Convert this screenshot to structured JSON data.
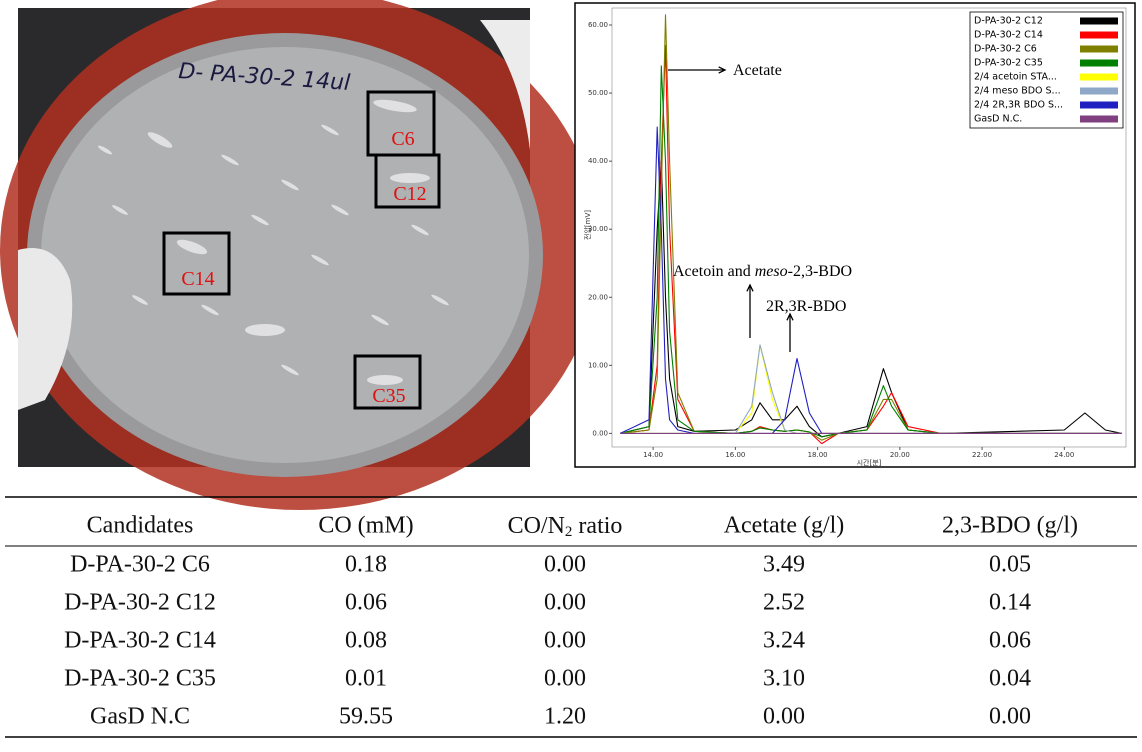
{
  "photo": {
    "plate_label": "D- PA-30-2 14ul",
    "boxes": [
      "C6",
      "C12",
      "C14",
      "C35"
    ]
  },
  "chart_data": {
    "type": "line",
    "x_label": "시간[분]",
    "y_label": "전압[mV]",
    "annotations": {
      "acetate": "Acetate",
      "acetoin_pre": "Acetoin and ",
      "acetoin_italic": "meso",
      "acetoin_post": "-2,3-BDO",
      "bdo": "2R,3R-BDO"
    },
    "x": [
      13.2,
      13.9,
      14.1,
      14.2,
      14.3,
      14.4,
      14.6,
      15.0,
      16.0,
      16.4,
      16.6,
      16.9,
      17.2,
      17.5,
      17.8,
      18.1,
      18.5,
      19.2,
      19.6,
      19.8,
      20.2,
      21.0,
      24.0,
      24.5,
      25.0,
      25.4
    ],
    "xlim": [
      13,
      25.5
    ],
    "ylim": [
      -2,
      62.5
    ],
    "xticks": [
      {
        "value": 14,
        "label": "14.00"
      },
      {
        "value": 16,
        "label": "16.00"
      },
      {
        "value": 18,
        "label": "18.00"
      },
      {
        "value": 20,
        "label": "20.00"
      },
      {
        "value": 22,
        "label": "22.00"
      },
      {
        "value": 24,
        "label": "24.00"
      }
    ],
    "yticks": [
      {
        "value": 0,
        "label": "0.00"
      },
      {
        "value": 10,
        "label": "10.00"
      },
      {
        "value": 20,
        "label": "20.00"
      },
      {
        "value": 30,
        "label": "30.00"
      },
      {
        "value": 40,
        "label": "40.00"
      },
      {
        "value": 50,
        "label": "50.00"
      },
      {
        "value": 60,
        "label": "60.00"
      }
    ],
    "legend": "top-right",
    "series": [
      {
        "name": "D-PA-30-2 C12",
        "color": "#000000",
        "values": [
          0,
          1,
          30,
          40,
          20,
          8,
          1,
          0.3,
          0.5,
          2,
          4.5,
          2,
          2,
          4,
          1,
          -0.5,
          0,
          1,
          9.5,
          6,
          0.5,
          0,
          0.5,
          3,
          0.5,
          0
        ]
      },
      {
        "name": "D-PA-30-2 C14",
        "color": "#ff0000",
        "values": [
          0,
          0.5,
          10,
          40,
          57,
          30,
          5,
          0.3,
          0,
          0.3,
          1,
          0.5,
          0.3,
          0.5,
          0.2,
          -1.5,
          0,
          0.5,
          4,
          6,
          1,
          0,
          0,
          0,
          0,
          0
        ]
      },
      {
        "name": "D-PA-30-2 C6",
        "color": "#808000",
        "values": [
          0,
          0.5,
          8,
          35,
          61.5,
          40,
          6,
          0.3,
          0,
          0.3,
          0.8,
          0.5,
          0.3,
          0.5,
          0.2,
          -1,
          0,
          0.5,
          5,
          5,
          0.5,
          0,
          0,
          0,
          0,
          0
        ]
      },
      {
        "name": "D-PA-30-2 C35",
        "color": "#008000",
        "values": [
          0,
          1,
          20,
          54,
          40,
          15,
          2,
          0.3,
          0,
          0.3,
          0.8,
          0.5,
          0.3,
          0.5,
          0.2,
          -0.5,
          0,
          0.5,
          7,
          4,
          0.5,
          0,
          0,
          0,
          0,
          0
        ]
      },
      {
        "name": "2/4 acetoin STA...",
        "color": "#ffff00",
        "values": [
          0,
          0,
          0,
          0,
          0,
          0,
          0,
          0,
          0,
          3,
          13,
          5,
          0.5,
          0,
          0,
          0,
          0,
          0,
          0,
          0,
          0,
          0,
          0,
          0,
          0,
          0
        ]
      },
      {
        "name": "2/4 meso BDO S...",
        "color": "#8fa8c8",
        "values": [
          0,
          0,
          0,
          0,
          0,
          0,
          0,
          0,
          0,
          4,
          13,
          6,
          0.5,
          0,
          0,
          0,
          0,
          0,
          0,
          0,
          0,
          0,
          0,
          0,
          0,
          0
        ]
      },
      {
        "name": "2/4 2R,3R BDO S...",
        "color": "#2020c0",
        "values": [
          0,
          2,
          45,
          30,
          8,
          2,
          0.5,
          0,
          0,
          0,
          0,
          0,
          2,
          11,
          3,
          0,
          0,
          0,
          0,
          0,
          0,
          0,
          0,
          0,
          0,
          0
        ]
      },
      {
        "name": "GasD N.C.",
        "color": "#804080",
        "values": [
          0,
          0,
          0,
          0,
          0,
          0,
          0,
          0,
          0,
          0,
          0,
          0,
          0,
          0,
          0,
          0,
          0,
          0,
          0,
          0,
          0,
          0,
          0,
          0,
          0,
          0
        ]
      }
    ]
  },
  "table": {
    "header": [
      "Candidates",
      "CO (mM)",
      {
        "text": "CO/N",
        "sub": "2",
        "rest": " ratio"
      },
      "Acetate (g/l)",
      "2,3-BDO (g/l)"
    ],
    "rows": [
      [
        "D-PA-30-2 C6",
        "0.18",
        "0.00",
        "3.49",
        "0.05"
      ],
      [
        "D-PA-30-2 C12",
        "0.06",
        "0.00",
        "2.52",
        "0.14"
      ],
      [
        "D-PA-30-2 C14",
        "0.08",
        "0.00",
        "3.24",
        "0.06"
      ],
      [
        "D-PA-30-2 C35",
        "0.01",
        "0.00",
        "3.10",
        "0.04"
      ],
      [
        "GasD N.C",
        "59.55",
        "1.20",
        "0.00",
        "0.00"
      ]
    ]
  }
}
